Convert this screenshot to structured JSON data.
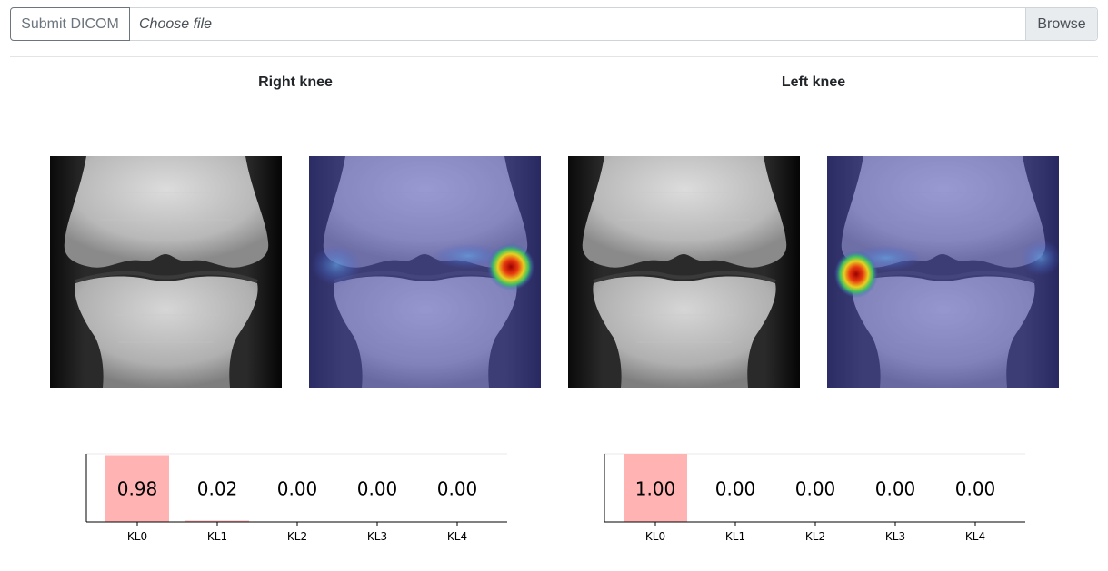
{
  "upload": {
    "submit_label": "Submit DICOM",
    "file_placeholder": "Choose file",
    "browse_label": "Browse"
  },
  "right_knee": {
    "title": "Right knee",
    "original_image": "right-knee-xray",
    "heatmap_image": "right-knee-heatmap-overlay"
  },
  "left_knee": {
    "title": "Left knee",
    "original_image": "left-knee-xray",
    "heatmap_image": "left-knee-heatmap-overlay"
  },
  "colors": {
    "bar": "#ffb3b3",
    "heat_hot": "#b00000",
    "overlay": "#3a3aa8"
  },
  "chart_data": [
    {
      "type": "bar",
      "categories": [
        "KL0",
        "KL1",
        "KL2",
        "KL3",
        "KL4"
      ],
      "values": [
        0.98,
        0.02,
        0.0,
        0.0,
        0.0
      ],
      "labels": [
        "0.98",
        "0.02",
        "0.00",
        "0.00",
        "0.00"
      ],
      "ylim": [
        0,
        1
      ],
      "grid": false
    },
    {
      "type": "bar",
      "categories": [
        "KL0",
        "KL1",
        "KL2",
        "KL3",
        "KL4"
      ],
      "values": [
        1.0,
        0.0,
        0.0,
        0.0,
        0.0
      ],
      "labels": [
        "1.00",
        "0.00",
        "0.00",
        "0.00",
        "0.00"
      ],
      "ylim": [
        0,
        1
      ],
      "grid": false
    }
  ]
}
